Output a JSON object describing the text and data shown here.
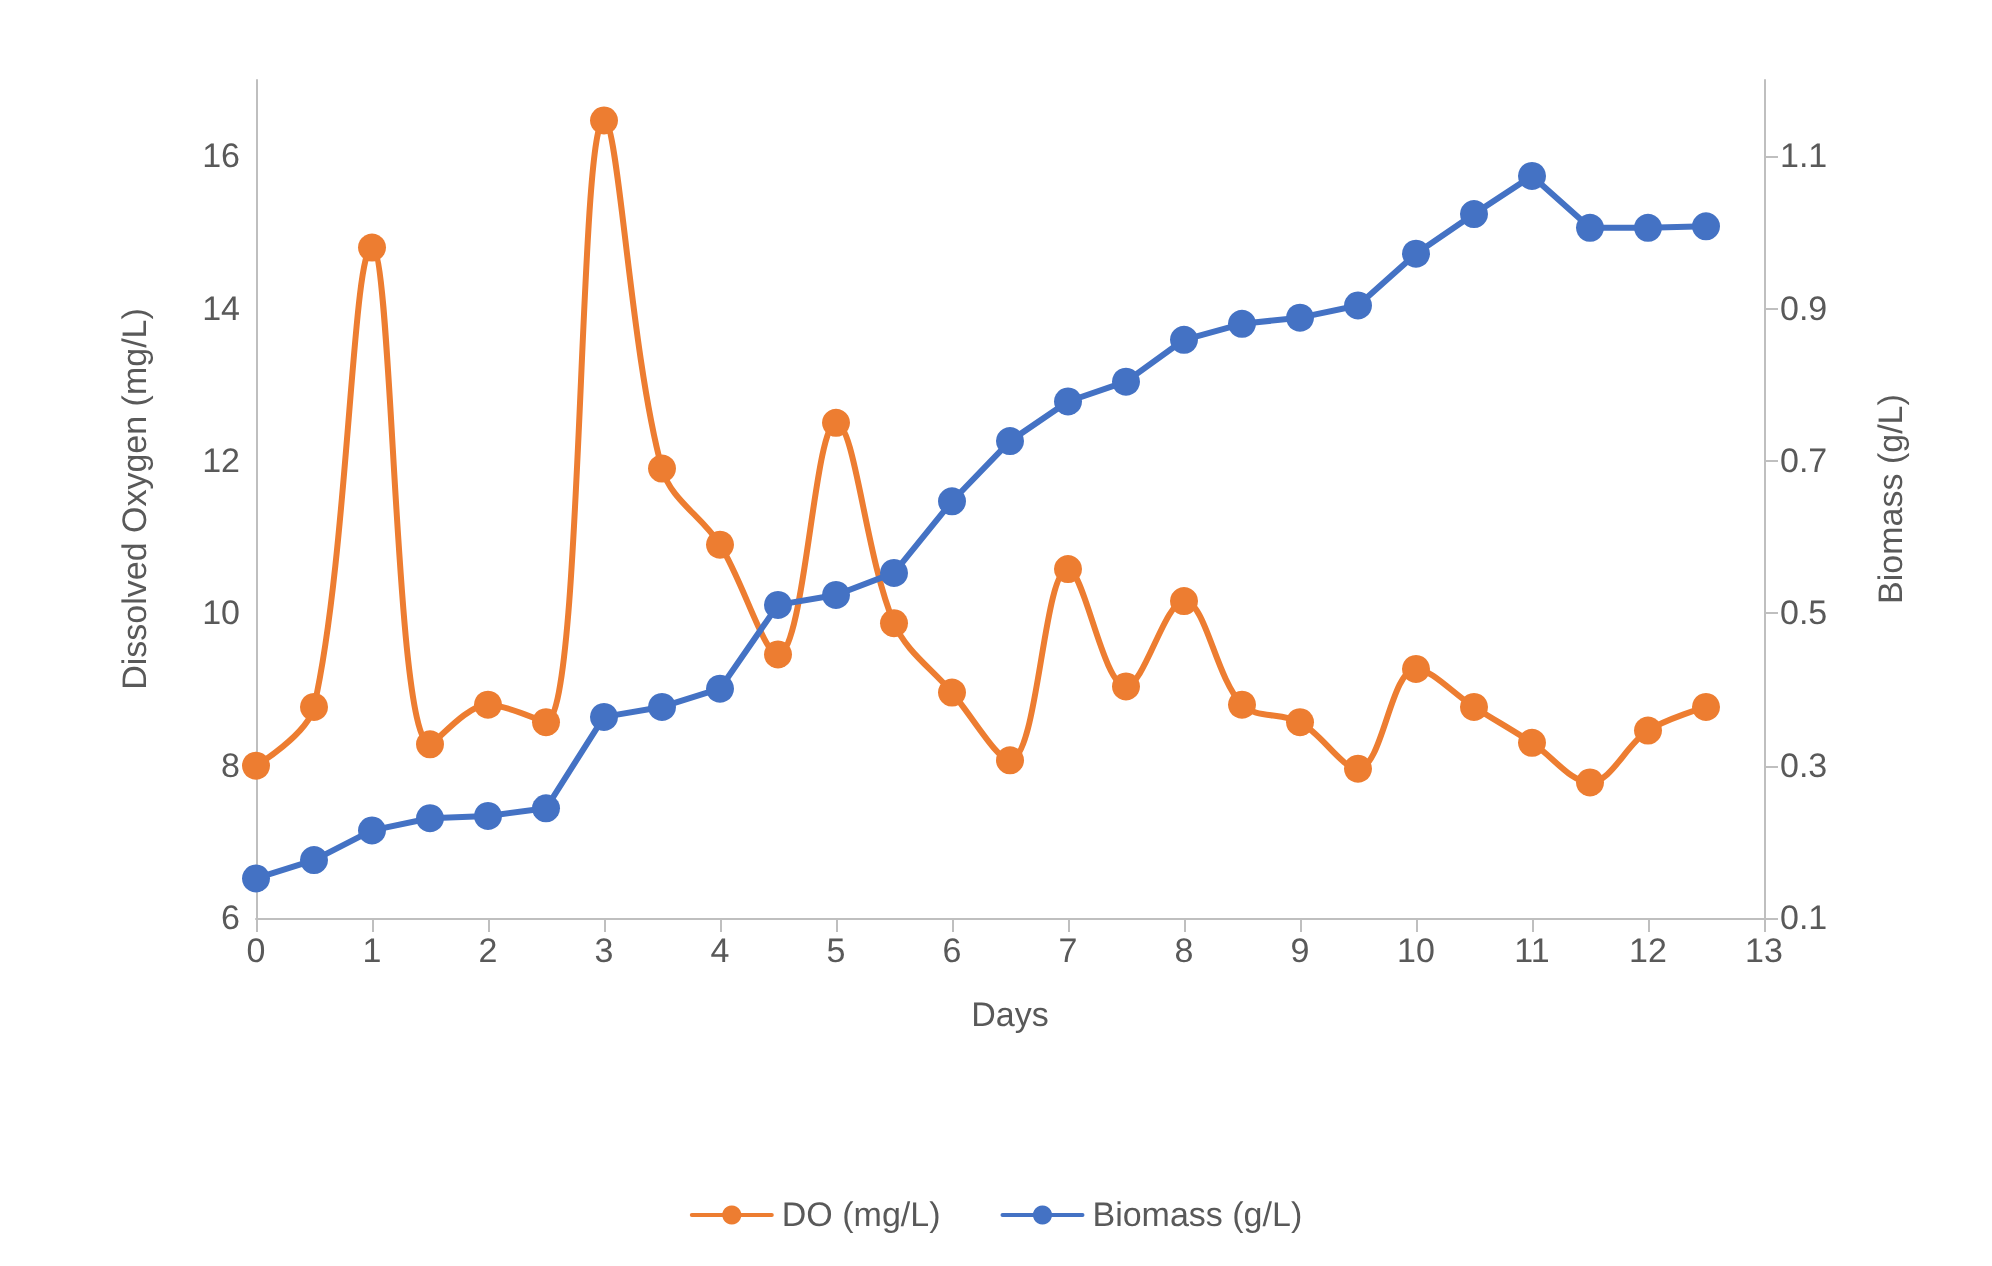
{
  "chart_data": {
    "type": "line",
    "xlabel": "Days",
    "ylabel": "Dissolved Oxygen (mg/L)",
    "y2label": "Biomass (g/L)",
    "x": [
      0,
      0.5,
      1,
      1.5,
      2,
      2.5,
      3,
      3.5,
      4,
      4.5,
      5,
      5.5,
      6,
      6.5,
      7,
      7.5,
      8,
      8.5,
      9,
      9.5,
      10,
      10.5,
      11,
      11.5,
      12,
      12.5
    ],
    "series": [
      {
        "name": "DO (mg/L)",
        "color": "#ed7d31",
        "values": [
          8.0,
          8.77,
          14.8,
          8.28,
          8.8,
          8.57,
          16.47,
          11.9,
          10.9,
          9.46,
          12.5,
          9.87,
          8.96,
          8.07,
          10.58,
          9.04,
          10.16,
          8.8,
          8.57,
          7.96,
          9.27,
          8.77,
          8.3,
          7.78,
          8.46,
          8.77
        ]
      },
      {
        "name": "Biomass (g/L)",
        "color": "#4472c4",
        "axis": "y2",
        "values": [
          0.152,
          0.176,
          0.215,
          0.231,
          0.234,
          0.244,
          0.364,
          0.377,
          0.401,
          0.511,
          0.524,
          0.553,
          0.647,
          0.726,
          0.778,
          0.804,
          0.859,
          0.88,
          0.888,
          0.904,
          0.972,
          1.024,
          1.074,
          1.006,
          1.006,
          1.008
        ]
      }
    ],
    "xlim": [
      0,
      13
    ],
    "xticks": [
      0,
      1,
      2,
      3,
      4,
      5,
      6,
      7,
      8,
      9,
      10,
      11,
      12,
      13
    ],
    "ylim": [
      6,
      17
    ],
    "yticks": [
      6,
      8,
      10,
      12,
      14,
      16
    ],
    "y2lim": [
      0.1,
      1.2
    ],
    "y2ticks": [
      0.1,
      0.3,
      0.5,
      0.7,
      0.9,
      1.1
    ],
    "grid": false,
    "legend": "bottom",
    "marker": "circle",
    "line_style": "solid"
  }
}
